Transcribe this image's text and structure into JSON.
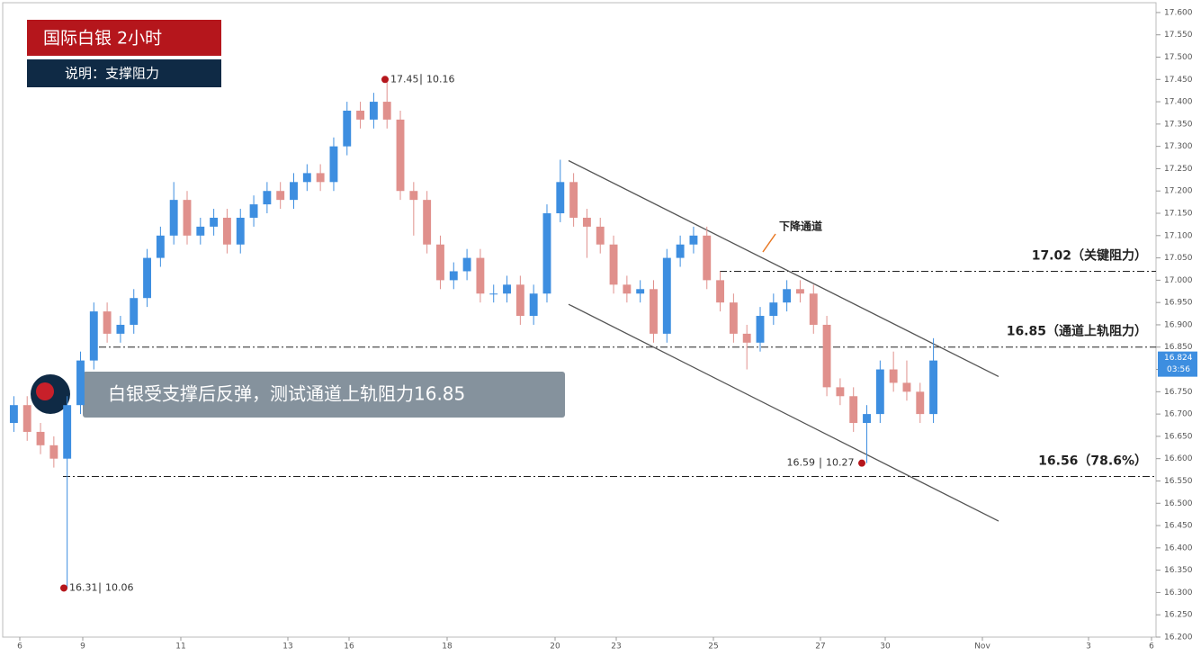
{
  "chart_data": {
    "type": "candlestick",
    "title": "国际白银  2小时",
    "subtitle": "说明：支撑阻力",
    "banner": "白银受支撑后反弹，测试通道上轨阻力16.85",
    "up_color": "#3d8ee0",
    "down_color": "#e0908c",
    "open": [
      16.68,
      16.72,
      16.66,
      16.63,
      16.6,
      16.72,
      16.82,
      16.93,
      16.88,
      16.9,
      16.96,
      17.05,
      17.1,
      17.18,
      17.1,
      17.12,
      17.14,
      17.08,
      17.14,
      17.17,
      17.2,
      17.18,
      17.22,
      17.24,
      17.22,
      17.3,
      17.38,
      17.36,
      17.4,
      17.36,
      17.2,
      17.18,
      17.08,
      17.0,
      17.02,
      17.05,
      16.97,
      16.97,
      16.99,
      16.92,
      16.97,
      17.15,
      17.22,
      17.14,
      17.12,
      17.08,
      16.99,
      16.97,
      16.98,
      16.88,
      17.05,
      17.08,
      17.1,
      17.0,
      16.95,
      16.88,
      16.86,
      16.92,
      16.95,
      16.98,
      16.97,
      16.9,
      16.76,
      16.74,
      16.68,
      16.7,
      16.8,
      16.77,
      16.75,
      16.7
    ],
    "high": [
      16.74,
      16.74,
      16.68,
      16.65,
      16.74,
      16.84,
      16.95,
      16.95,
      16.92,
      16.98,
      17.07,
      17.12,
      17.22,
      17.2,
      17.14,
      17.16,
      17.16,
      17.16,
      17.19,
      17.22,
      17.22,
      17.24,
      17.26,
      17.26,
      17.32,
      17.4,
      17.4,
      17.42,
      17.45,
      17.38,
      17.22,
      17.2,
      17.1,
      17.04,
      17.07,
      17.07,
      16.99,
      17.01,
      17.01,
      16.99,
      17.17,
      17.27,
      17.24,
      17.16,
      17.14,
      17.1,
      17.01,
      17.0,
      17.0,
      17.07,
      17.1,
      17.12,
      17.12,
      17.02,
      16.97,
      16.9,
      16.94,
      16.97,
      17.0,
      17.0,
      16.99,
      16.92,
      16.78,
      16.76,
      16.72,
      16.82,
      16.84,
      16.82,
      16.77,
      16.87
    ],
    "low": [
      16.66,
      16.64,
      16.61,
      16.58,
      16.31,
      16.7,
      16.8,
      16.86,
      16.86,
      16.88,
      16.94,
      17.03,
      17.08,
      17.08,
      17.08,
      17.1,
      17.06,
      17.06,
      17.12,
      17.15,
      17.16,
      17.16,
      17.2,
      17.2,
      17.2,
      17.28,
      17.34,
      17.34,
      17.34,
      17.18,
      17.1,
      17.06,
      16.98,
      16.98,
      17.0,
      16.95,
      16.95,
      16.95,
      16.9,
      16.9,
      16.95,
      17.13,
      17.12,
      17.05,
      17.06,
      16.97,
      16.95,
      16.95,
      16.86,
      16.86,
      17.03,
      17.06,
      16.98,
      16.93,
      16.86,
      16.8,
      16.84,
      16.9,
      16.93,
      16.95,
      16.88,
      16.74,
      16.72,
      16.66,
      16.59,
      16.68,
      16.75,
      16.73,
      16.68,
      16.68
    ],
    "close": [
      16.72,
      16.66,
      16.63,
      16.6,
      16.72,
      16.82,
      16.93,
      16.88,
      16.9,
      16.96,
      17.05,
      17.1,
      17.18,
      17.1,
      17.12,
      17.14,
      17.08,
      17.14,
      17.17,
      17.2,
      17.18,
      17.22,
      17.24,
      17.22,
      17.3,
      17.38,
      17.36,
      17.4,
      17.36,
      17.2,
      17.18,
      17.08,
      17.0,
      17.02,
      17.05,
      16.97,
      16.97,
      16.99,
      16.92,
      16.97,
      17.15,
      17.22,
      17.14,
      17.12,
      17.08,
      16.99,
      16.97,
      16.98,
      16.88,
      17.05,
      17.08,
      17.1,
      17.0,
      16.95,
      16.88,
      16.86,
      16.92,
      16.95,
      16.98,
      16.97,
      16.9,
      16.76,
      16.74,
      16.68,
      16.7,
      16.8,
      16.77,
      16.75,
      16.7,
      16.82
    ],
    "ylim": [
      16.2,
      17.62
    ],
    "yticks": [
      {
        "value": 17.6,
        "label": "17.600"
      },
      {
        "value": 17.55,
        "label": "17.550"
      },
      {
        "value": 17.5,
        "label": "17.500"
      },
      {
        "value": 17.45,
        "label": "17.450"
      },
      {
        "value": 17.4,
        "label": "17.400"
      },
      {
        "value": 17.35,
        "label": "17.350"
      },
      {
        "value": 17.3,
        "label": "17.300"
      },
      {
        "value": 17.25,
        "label": "17.250"
      },
      {
        "value": 17.2,
        "label": "17.200"
      },
      {
        "value": 17.15,
        "label": "17.150"
      },
      {
        "value": 17.1,
        "label": "17.100"
      },
      {
        "value": 17.05,
        "label": "17.050"
      },
      {
        "value": 17.0,
        "label": "17.000"
      },
      {
        "value": 16.95,
        "label": "16.950"
      },
      {
        "value": 16.9,
        "label": "16.900"
      },
      {
        "value": 16.85,
        "label": "16.850"
      },
      {
        "value": 16.8,
        "label": "16.800"
      },
      {
        "value": 16.75,
        "label": "16.750"
      },
      {
        "value": 16.7,
        "label": "16.700"
      },
      {
        "value": 16.65,
        "label": "16.650"
      },
      {
        "value": 16.6,
        "label": "16.600"
      },
      {
        "value": 16.55,
        "label": "16.550"
      },
      {
        "value": 16.5,
        "label": "16.500"
      },
      {
        "value": 16.45,
        "label": "16.450"
      },
      {
        "value": 16.4,
        "label": "16.400"
      },
      {
        "value": 16.35,
        "label": "16.350"
      },
      {
        "value": 16.3,
        "label": "16.300"
      },
      {
        "value": 16.25,
        "label": "16.250"
      },
      {
        "value": 16.2,
        "label": "16.200"
      }
    ],
    "xtick_labels": [
      "6",
      "9",
      "11",
      "13",
      "16",
      "18",
      "20",
      "23",
      "25",
      "27",
      "30",
      "Nov",
      "3",
      "6"
    ],
    "levels": [
      {
        "value": 17.02,
        "label": "17.02（关键阻力）"
      },
      {
        "value": 16.85,
        "label": "16.85（通道上轨阻力）"
      },
      {
        "value": 16.56,
        "label": "16.56（78.6%）"
      }
    ],
    "channel": {
      "label": "下降通道",
      "upper": [
        17.268,
        16.784
      ],
      "lower": [
        16.946,
        16.46
      ]
    },
    "extremes": [
      {
        "price": 17.45,
        "label": "17.45",
        "note": "10.16"
      },
      {
        "price": 16.31,
        "label": "16.31",
        "note": "10.06"
      },
      {
        "price": 16.59,
        "label": "16.59",
        "note": "10.27"
      }
    ],
    "last_price": {
      "value": 16.824,
      "label": "16.824",
      "timer": "03:56"
    }
  }
}
